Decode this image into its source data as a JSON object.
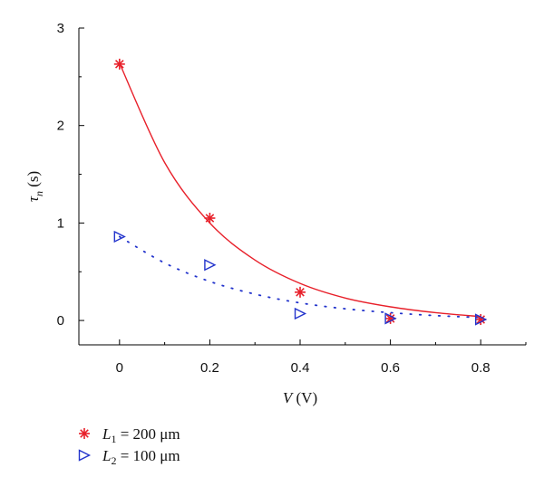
{
  "chart_data": {
    "type": "scatter",
    "xlabel": "V (V)",
    "ylabel": "τn (s)",
    "xlim": [
      -0.09,
      0.9
    ],
    "ylim": [
      -0.25,
      3.0
    ],
    "xticks": [
      0,
      0.2,
      0.4,
      0.6,
      0.8
    ],
    "xtick_labels": [
      "0",
      "0.2",
      "0.4",
      "0.6",
      "0.8"
    ],
    "yticks": [
      0,
      1,
      2,
      3
    ],
    "ytick_labels": [
      "0",
      "1",
      "2",
      "3"
    ],
    "grid": false,
    "legend_position": "bottom-left",
    "series": [
      {
        "name": "L1 = 200 μm",
        "marker": "asterisk",
        "color": "#e8202a",
        "fit_line": "solid",
        "x": [
          0,
          0.2,
          0.4,
          0.6,
          0.8
        ],
        "y": [
          2.63,
          1.05,
          0.29,
          0.02,
          0.01
        ],
        "fit": {
          "x": [
            0,
            0.1,
            0.2,
            0.3,
            0.4,
            0.5,
            0.6,
            0.7,
            0.8
          ],
          "y": [
            2.64,
            1.62,
            1.0,
            0.62,
            0.38,
            0.23,
            0.14,
            0.08,
            0.04
          ]
        }
      },
      {
        "name": "L2 = 100 μm",
        "marker": "triangle-right",
        "color": "#2233cc",
        "fit_line": "dotted",
        "x": [
          0,
          0.2,
          0.4,
          0.6,
          0.8
        ],
        "y": [
          0.86,
          0.57,
          0.07,
          0.02,
          0.01
        ],
        "fit": {
          "x": [
            0,
            0.1,
            0.2,
            0.3,
            0.4,
            0.5,
            0.6,
            0.7,
            0.8
          ],
          "y": [
            0.86,
            0.59,
            0.4,
            0.27,
            0.18,
            0.12,
            0.08,
            0.05,
            0.03
          ]
        }
      }
    ],
    "legend": [
      {
        "var": "L",
        "sub": "1",
        "rest": " = 200 μm"
      },
      {
        "var": "L",
        "sub": "2",
        "rest": " = 100 μm"
      }
    ],
    "xlabel_parts": {
      "var": "V",
      "unit": " (V)"
    },
    "ylabel_parts": {
      "var": "τ",
      "sub": "n",
      "unit": " (s)"
    }
  }
}
